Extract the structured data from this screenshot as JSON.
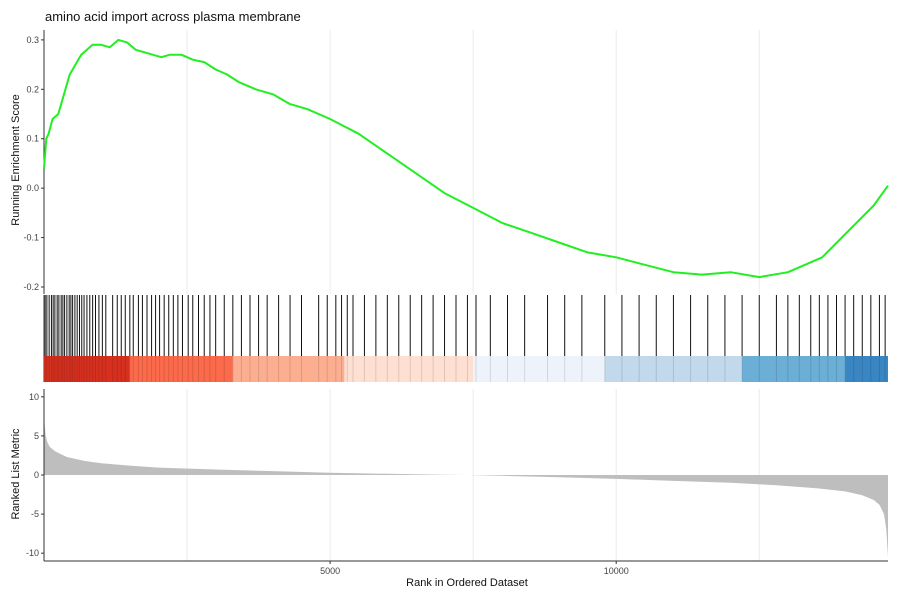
{
  "chart_data": {
    "type": "line",
    "title": "amino acid import across plasma membrane",
    "xlabel": "Rank in Ordered Dataset",
    "xlim": [
      0,
      14750
    ],
    "x_ticks": [
      5000,
      10000
    ],
    "x_tick_labels": [
      "5000",
      "10000"
    ],
    "grid": "vertical lines only",
    "panels": {
      "running_es": {
        "ylabel": "Running Enrichment Score",
        "ylim": [
          -0.2,
          0.32
        ],
        "y_ticks": [
          -0.2,
          -0.1,
          0.0,
          0.1,
          0.2,
          0.3
        ],
        "y_tick_labels": [
          "-0.2",
          "-0.1",
          "0.0",
          "0.1",
          "0.2",
          "0.3"
        ],
        "line_color": "#22ee22",
        "series": [
          {
            "x": [
              0,
              40,
              80,
              150,
              250,
              350,
              450,
              550,
              650,
              750,
              850,
              1000,
              1150,
              1300,
              1450,
              1600,
              1750,
              1900,
              2050,
              2200,
              2400,
              2600,
              2800,
              3000,
              3200,
              3400,
              3700,
              4000,
              4300,
              4600,
              5000,
              5500,
              6000,
              6500,
              7000,
              7500,
              8000,
              8500,
              9000,
              9500,
              10000,
              10500,
              11000,
              11500,
              12000,
              12500,
              13000,
              13300,
              13600,
              13900,
              14200,
              14500,
              14750
            ],
            "y": [
              0.04,
              0.1,
              0.11,
              0.14,
              0.15,
              0.19,
              0.23,
              0.25,
              0.27,
              0.28,
              0.29,
              0.29,
              0.285,
              0.3,
              0.295,
              0.28,
              0.275,
              0.27,
              0.265,
              0.27,
              0.27,
              0.26,
              0.255,
              0.24,
              0.23,
              0.215,
              0.2,
              0.19,
              0.17,
              0.16,
              0.14,
              0.11,
              0.07,
              0.03,
              -0.01,
              -0.04,
              -0.07,
              -0.09,
              -0.11,
              -0.13,
              -0.14,
              -0.155,
              -0.17,
              -0.175,
              -0.17,
              -0.18,
              -0.17,
              -0.155,
              -0.14,
              -0.105,
              -0.07,
              -0.035,
              0.005
            ]
          }
        ]
      },
      "gene_hits": {
        "hit_ranks": [
          20,
          50,
          90,
          130,
          160,
          190,
          230,
          260,
          300,
          330,
          360,
          400,
          440,
          470,
          500,
          540,
          580,
          620,
          660,
          700,
          750,
          800,
          850,
          900,
          960,
          1020,
          1080,
          1200,
          1280,
          1350,
          1420,
          1500,
          1560,
          1650,
          1720,
          1800,
          1880,
          1950,
          2020,
          2100,
          2180,
          2260,
          2340,
          2420,
          2520,
          2600,
          2700,
          2800,
          2900,
          3000,
          3150,
          3300,
          3450,
          3600,
          3750,
          3900,
          4100,
          4300,
          4500,
          4800,
          4950,
          5100,
          5200,
          5300,
          5400,
          5600,
          5800,
          6000,
          6200,
          6400,
          6600,
          6800,
          7000,
          7200,
          7400,
          7550,
          7800,
          8100,
          8400,
          8800,
          9100,
          9400,
          9800,
          10100,
          10400,
          10700,
          11000,
          11300,
          11600,
          11900,
          12200,
          12500,
          12800,
          13000,
          13200,
          13400,
          13550,
          13700,
          13850,
          14000,
          14150,
          14300,
          14450,
          14600,
          14700
        ]
      },
      "rank_color_bar": {
        "segments": [
          {
            "from": 0,
            "to": 1500,
            "color": "#d7301f"
          },
          {
            "from": 1500,
            "to": 3300,
            "color": "#fb6a4a"
          },
          {
            "from": 3300,
            "to": 5250,
            "color": "#fcae91"
          },
          {
            "from": 5250,
            "to": 7500,
            "color": "#fde0d2"
          },
          {
            "from": 7500,
            "to": 9800,
            "color": "#eef3fb"
          },
          {
            "from": 9800,
            "to": 12200,
            "color": "#c1d9ea"
          },
          {
            "from": 12200,
            "to": 14000,
            "color": "#6baed6"
          },
          {
            "from": 14000,
            "to": 14750,
            "color": "#3a86c3"
          }
        ]
      },
      "ranked_metric": {
        "type": "area",
        "ylabel": "Ranked List Metric",
        "ylim": [
          -11,
          11
        ],
        "y_ticks": [
          -10,
          -5,
          0,
          5,
          10
        ],
        "y_tick_labels": [
          "-10",
          "-5",
          "0",
          "5",
          "10"
        ],
        "fill_color": "#bebebe",
        "series": [
          {
            "x": [
              0,
              10,
              30,
              60,
              100,
              200,
              400,
              700,
              1000,
              1500,
              2000,
              3000,
              4000,
              5000,
              6000,
              7000,
              7400,
              8000,
              9000,
              10000,
              11000,
              12000,
              12800,
              13500,
              14000,
              14300,
              14500,
              14600,
              14680,
              14720,
              14750
            ],
            "y": [
              8,
              6.5,
              5,
              4.2,
              3.6,
              3,
              2.3,
              1.8,
              1.5,
              1.2,
              0.95,
              0.7,
              0.5,
              0.3,
              0.15,
              0.03,
              0,
              -0.1,
              -0.3,
              -0.5,
              -0.75,
              -1,
              -1.3,
              -1.7,
              -2.1,
              -2.6,
              -3.2,
              -3.8,
              -5,
              -7,
              -10.5
            ]
          }
        ]
      }
    }
  }
}
